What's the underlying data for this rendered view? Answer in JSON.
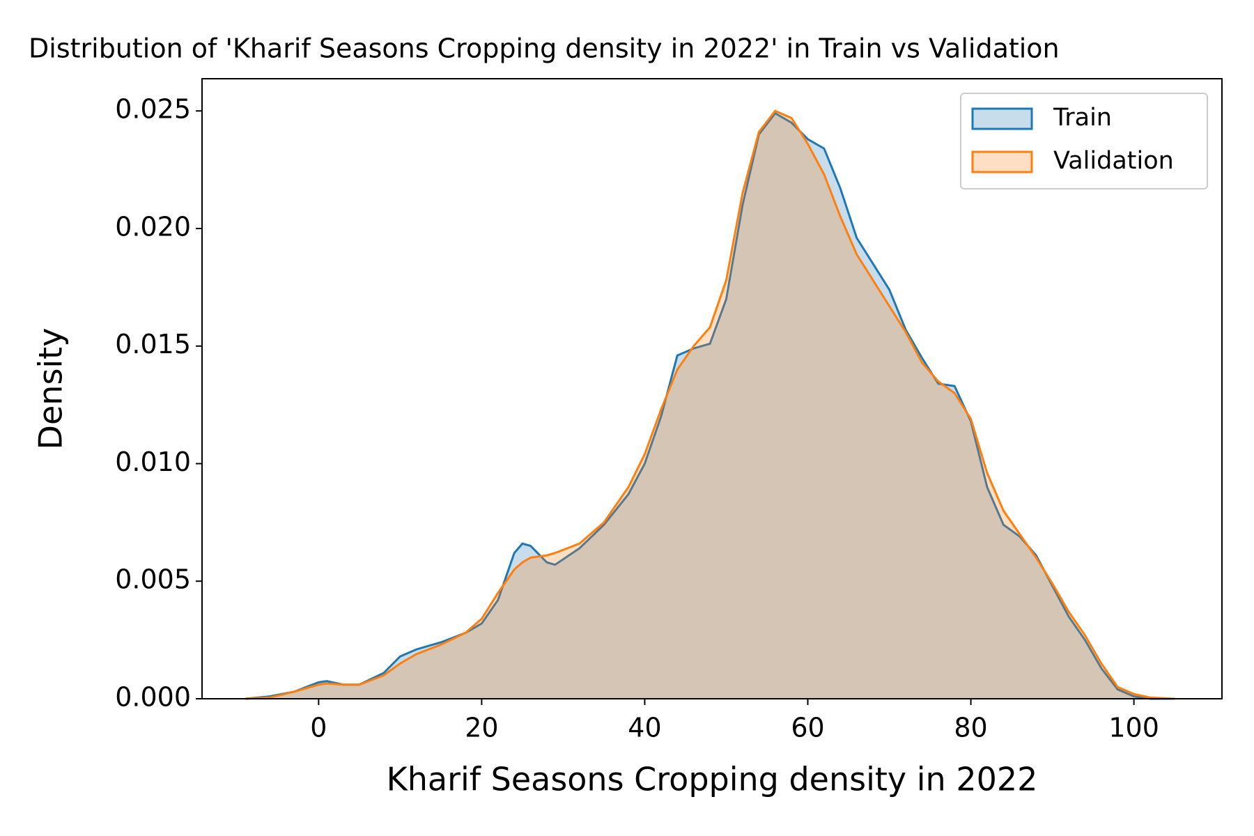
{
  "chart_data": {
    "type": "area",
    "title": "Distribution of 'Kharif Seasons  Cropping density in 2022' in Train vs Validation",
    "xlabel": "Kharif Seasons  Cropping density in 2022",
    "ylabel": "Density",
    "x": [
      -9,
      -6,
      -3,
      0,
      1,
      3,
      5,
      8,
      10,
      12,
      15,
      18,
      20,
      22,
      24,
      25,
      26,
      28,
      29,
      32,
      35,
      38,
      40,
      42,
      44,
      46,
      48,
      50,
      52,
      54,
      56,
      58,
      60,
      62,
      64,
      66,
      68,
      70,
      72,
      74,
      76,
      78,
      80,
      82,
      84,
      86,
      88,
      90,
      92,
      94,
      96,
      98,
      100,
      102,
      105
    ],
    "series": [
      {
        "name": "Train",
        "color": "#1f77b4",
        "values": [
          0,
          0.0001,
          0.0003,
          0.0007,
          0.00075,
          0.0006,
          0.0006,
          0.0011,
          0.0018,
          0.0021,
          0.0024,
          0.0028,
          0.0032,
          0.0042,
          0.0062,
          0.0066,
          0.0065,
          0.0058,
          0.0057,
          0.0064,
          0.0074,
          0.0087,
          0.01,
          0.012,
          0.0146,
          0.0149,
          0.0151,
          0.017,
          0.021,
          0.024,
          0.0249,
          0.0245,
          0.0238,
          0.0234,
          0.0217,
          0.0196,
          0.0185,
          0.0174,
          0.0157,
          0.0145,
          0.0134,
          0.0133,
          0.0118,
          0.009,
          0.0074,
          0.0069,
          0.0061,
          0.0048,
          0.0035,
          0.0025,
          0.0013,
          0.0004,
          0.0001,
          0,
          0
        ]
      },
      {
        "name": "Validation",
        "color": "#ff7f0e",
        "values": [
          0,
          5e-05,
          0.0003,
          0.0006,
          0.00065,
          0.0006,
          0.0006,
          0.001,
          0.0015,
          0.0019,
          0.0023,
          0.0028,
          0.0034,
          0.0045,
          0.0055,
          0.0058,
          0.006,
          0.0061,
          0.0062,
          0.0066,
          0.0075,
          0.009,
          0.0104,
          0.0123,
          0.014,
          0.015,
          0.0158,
          0.0178,
          0.0215,
          0.0241,
          0.025,
          0.0247,
          0.0236,
          0.0223,
          0.0205,
          0.0189,
          0.0178,
          0.0167,
          0.0156,
          0.0143,
          0.0135,
          0.013,
          0.0119,
          0.0096,
          0.008,
          0.007,
          0.006,
          0.0049,
          0.0037,
          0.0027,
          0.0015,
          0.0005,
          0.0002,
          5e-05,
          0
        ]
      }
    ],
    "xlim": [
      -14.3,
      110.8
    ],
    "ylim": [
      0,
      0.02637
    ],
    "xticks": [
      0,
      20,
      40,
      60,
      80,
      100
    ],
    "yticks": [
      {
        "value": 0,
        "label": "0.000"
      },
      {
        "value": 0.005,
        "label": "0.005"
      },
      {
        "value": 0.01,
        "label": "0.010"
      },
      {
        "value": 0.015,
        "label": "0.015"
      },
      {
        "value": 0.02,
        "label": "0.020"
      },
      {
        "value": 0.025,
        "label": "0.025"
      }
    ],
    "legend": "upper right",
    "fill_opacity": 0.25
  }
}
